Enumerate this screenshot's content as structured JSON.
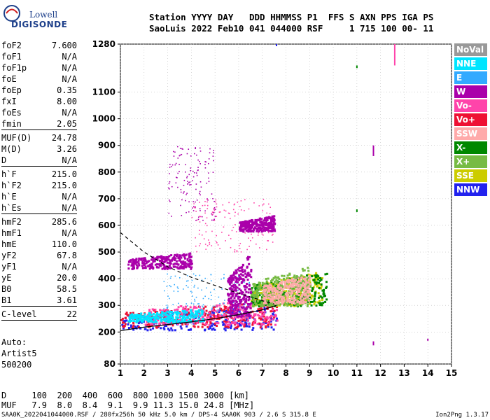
{
  "logo": {
    "line1": "Lowell",
    "line2": "DIGISONDE"
  },
  "header": {
    "labels": "Station YYYY DAY   DDD HHMMSS P1  FFS S AXN PPS IGA PS",
    "values": "SaoLuis 2022 Feb10 041 044000 RSF     1 715 100 00- 11"
  },
  "params": [
    {
      "name": "foF2",
      "value": "7.600"
    },
    {
      "name": "foF1",
      "value": "N/A"
    },
    {
      "name": "foF1p",
      "value": "N/A"
    },
    {
      "name": "foE",
      "value": "N/A"
    },
    {
      "name": "foEp",
      "value": "0.35"
    },
    {
      "name": "fxI",
      "value": "8.00"
    },
    {
      "name": "foEs",
      "value": "N/A"
    },
    {
      "name": "fmin",
      "value": "2.05"
    },
    {
      "sep": true
    },
    {
      "name": "MUF(D)",
      "value": "24.78"
    },
    {
      "name": "M(D)",
      "value": "3.26"
    },
    {
      "name": "D",
      "value": "N/A"
    },
    {
      "sep": true
    },
    {
      "name": "h`F",
      "value": "215.0"
    },
    {
      "name": "h`F2",
      "value": "215.0"
    },
    {
      "name": "h`E",
      "value": "N/A"
    },
    {
      "name": "h`Es",
      "value": "N/A"
    },
    {
      "sep": true
    },
    {
      "name": "hmF2",
      "value": "285.6"
    },
    {
      "name": "hmF1",
      "value": "N/A"
    },
    {
      "name": "hmE",
      "value": "110.0"
    },
    {
      "name": "yF2",
      "value": "67.8"
    },
    {
      "name": "yF1",
      "value": "N/A"
    },
    {
      "name": "yE",
      "value": "20.0"
    },
    {
      "name": "B0",
      "value": "58.5"
    },
    {
      "name": "B1",
      "value": "3.61"
    },
    {
      "sep": true
    },
    {
      "name": "C-level",
      "value": "22"
    },
    {
      "sep": true
    }
  ],
  "auto": {
    "line1": "Auto:",
    "line2": "Artist5",
    "line3": "500200"
  },
  "legend": [
    {
      "label": "NoVal",
      "color": "#999999"
    },
    {
      "label": "NNE",
      "color": "#00e5ff"
    },
    {
      "label": "E",
      "color": "#33aaff"
    },
    {
      "label": "W",
      "color": "#aa00aa"
    },
    {
      "label": "Vo-",
      "color": "#ff44aa"
    },
    {
      "label": "Vo+",
      "color": "#ee1133"
    },
    {
      "label": "SSW",
      "color": "#ffaaaa"
    },
    {
      "label": "X-",
      "color": "#008800"
    },
    {
      "label": "X+",
      "color": "#77bb44"
    },
    {
      "label": "SSE",
      "color": "#cccc00"
    },
    {
      "label": "NNW",
      "color": "#2222ee"
    }
  ],
  "muf_table": {
    "d_row": "D     100  200  400  600  800 1000 1500 3000 [km]",
    "muf_row": "MUF   7.9  8.0  8.4  9.1  9.9 11.3 15.0 24.8 [MHz]"
  },
  "footer": {
    "left": "SAA0K_2022041044000.RSF / 280fx256h 50 kHz 5.0 km / DPS-4 SAA0K 903 / 2.6 S 315.8 E",
    "right": "Ion2Png 1.3.17"
  },
  "chart_data": {
    "type": "scatter",
    "title": "",
    "xlabel": "",
    "ylabel": "",
    "xlim": [
      1,
      15
    ],
    "ylim": [
      80,
      1280
    ],
    "x_ticks": [
      1,
      2,
      3,
      4,
      5,
      6,
      7,
      8,
      9,
      10,
      11,
      12,
      13,
      14,
      15
    ],
    "y_ticks": [
      80,
      200,
      300,
      400,
      500,
      600,
      700,
      800,
      900,
      1000,
      1100,
      1280
    ],
    "grid": true,
    "legend_position": "right",
    "traces": [
      {
        "name": "profile",
        "style": "solid",
        "points": [
          [
            1.0,
            205
          ],
          [
            2.0,
            218
          ],
          [
            3.0,
            228
          ],
          [
            4.0,
            238
          ],
          [
            5.0,
            250
          ],
          [
            6.0,
            265
          ],
          [
            7.0,
            283
          ],
          [
            7.6,
            300
          ]
        ]
      },
      {
        "name": "ordinary-trace",
        "style": "dashed",
        "points": [
          [
            1.0,
            573
          ],
          [
            2.0,
            500
          ],
          [
            3.0,
            445
          ],
          [
            4.0,
            405
          ],
          [
            5.0,
            375
          ],
          [
            6.0,
            345
          ],
          [
            7.0,
            318
          ],
          [
            7.5,
            305
          ]
        ]
      }
    ],
    "echo_clusters": [
      {
        "x": [
          1.0,
          7.6
        ],
        "h": [
          210,
          300
        ],
        "color": "#2222ee",
        "dense": true
      },
      {
        "x": [
          1.0,
          7.6
        ],
        "h": [
          220,
          320
        ],
        "color": "#ee1133",
        "dense": true
      },
      {
        "x": [
          2.0,
          7.6
        ],
        "h": [
          230,
          330
        ],
        "color": "#ff44aa",
        "dense": true
      },
      {
        "x": [
          1.3,
          4.5
        ],
        "h": [
          240,
          290
        ],
        "color": "#00e5ff",
        "dense": true
      },
      {
        "x": [
          1.3,
          4.0
        ],
        "h": [
          440,
          500
        ],
        "color": "#aa00aa",
        "dense": true
      },
      {
        "x": [
          3.0,
          5.0
        ],
        "h": [
          620,
          900
        ],
        "color": "#aa00aa",
        "dense": false
      },
      {
        "x": [
          4.0,
          7.5
        ],
        "h": [
          500,
          700
        ],
        "color": "#ff44aa",
        "dense": false
      },
      {
        "x": [
          6.5,
          9.5
        ],
        "h": [
          300,
          430
        ],
        "color": "#cccc00",
        "dense": true
      },
      {
        "x": [
          6.5,
          9.7
        ],
        "h": [
          300,
          430
        ],
        "color": "#008800",
        "dense": true
      },
      {
        "x": [
          6.5,
          9.0
        ],
        "h": [
          300,
          450
        ],
        "color": "#77bb44",
        "dense": true
      },
      {
        "x": [
          7.0,
          9.0
        ],
        "h": [
          310,
          420
        ],
        "color": "#ffaaaa",
        "dense": true
      },
      {
        "x": [
          2.8,
          6.5
        ],
        "h": [
          250,
          420
        ],
        "color": "#33aaff",
        "dense": false
      },
      {
        "x": [
          6.0,
          7.5
        ],
        "h": [
          580,
          640
        ],
        "color": "#aa00aa",
        "dense": true
      },
      {
        "x": [
          5.5,
          6.5
        ],
        "h": [
          260,
          500
        ],
        "color": "#aa00aa",
        "dense": true
      }
    ],
    "isolated_marks": [
      {
        "x": 11.0,
        "h": [
          1190,
          1200
        ],
        "color": "#008800"
      },
      {
        "x": 11.7,
        "h": [
          860,
          900
        ],
        "color": "#aa00aa"
      },
      {
        "x": 11.7,
        "h": [
          150,
          165
        ],
        "color": "#aa00aa"
      },
      {
        "x": 12.6,
        "h": [
          1200,
          1280
        ],
        "color": "#ff44aa"
      },
      {
        "x": 14.0,
        "h": [
          170,
          175
        ],
        "color": "#aa00aa"
      },
      {
        "x": 7.6,
        "h": [
          1275,
          1280
        ],
        "color": "#2222ee"
      },
      {
        "x": 11.0,
        "h": [
          650,
          660
        ],
        "color": "#008800"
      }
    ]
  }
}
